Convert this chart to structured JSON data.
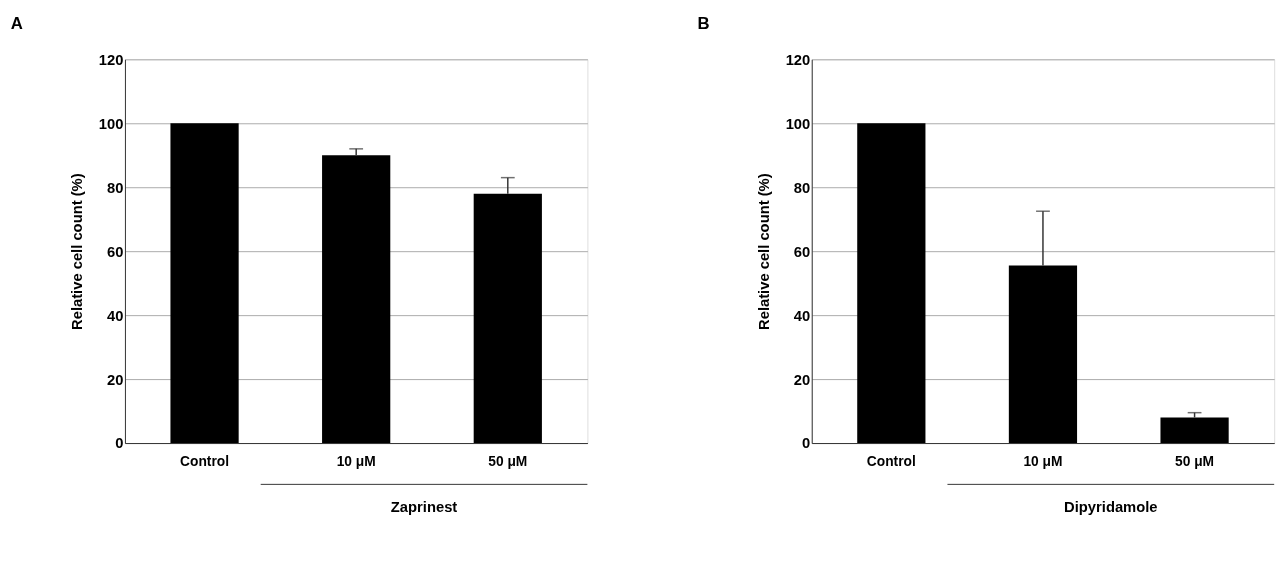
{
  "chart_data": [
    {
      "type": "bar",
      "title": "A",
      "ylabel": "Relative cell count (%)",
      "categories": [
        "Control",
        "10 μM",
        "50 μM"
      ],
      "values": [
        100,
        90,
        78
      ],
      "errors": [
        null,
        [
          90,
          92
        ],
        [
          78,
          83
        ]
      ],
      "color": "#000000",
      "ylim": [
        0,
        120
      ],
      "yticks": [
        0,
        20,
        40,
        60,
        80,
        100,
        120
      ],
      "grid": "y",
      "annotations": [
        "Zaprinest"
      ]
    },
    {
      "type": "bar",
      "title": "B",
      "ylabel": "Relative cell count (%)",
      "categories": [
        "Control",
        "10 μM",
        "50 μM"
      ],
      "values": [
        100,
        55.5,
        8
      ],
      "errors": [
        null,
        [
          55.5,
          72.5
        ],
        [
          8,
          9.5
        ]
      ],
      "color": "#000000",
      "ylim": [
        0,
        120
      ],
      "yticks": [
        0,
        20,
        40,
        60,
        80,
        100,
        120
      ],
      "grid": "y",
      "annotations": [
        "Dipyridamole"
      ]
    }
  ]
}
